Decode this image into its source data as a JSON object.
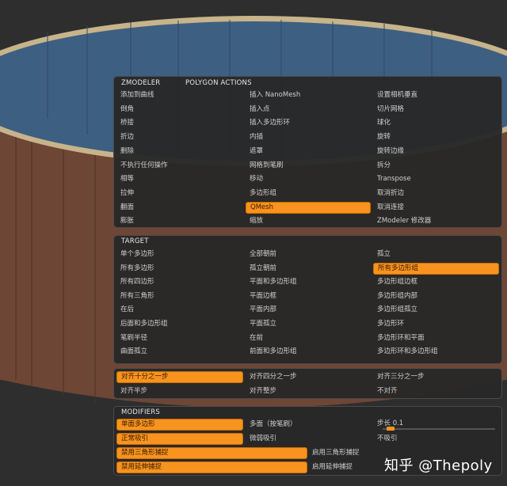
{
  "zmodeler_panel": {
    "header_left": "ZMODELER",
    "header_right": "POLYGON ACTIONS",
    "columns": [
      [
        "添加到曲线",
        "倒角",
        "桥接",
        "折边",
        "删除",
        "不执行任何操作",
        "相等",
        "拉伸",
        "翻面",
        "膨胀"
      ],
      [
        "插入 NanoMesh",
        "插入点",
        "插入多边形环",
        "内插",
        "遮罩",
        "网格到笔刷",
        "移动",
        "多边形组",
        "QMesh",
        "缩放"
      ],
      [
        "设置相机垂直",
        "切片网格",
        "球化",
        "旋转",
        "旋转边缘",
        "拆分",
        "Transpose",
        "取消折边",
        "取消连接",
        "ZModeler 修改器"
      ]
    ],
    "selected": "QMesh"
  },
  "target_panel": {
    "header": "TARGET",
    "columns": [
      [
        "单个多边形",
        "所有多边形",
        "所有四边形",
        "所有三角形",
        "在后",
        "后面和多边形组",
        "笔刷半径",
        "曲面孤立"
      ],
      [
        "全部朝前",
        "孤立朝前",
        "平面和多边形组",
        "平面边框",
        "平面内部",
        "平面孤立",
        "在前",
        "前面和多边形组"
      ],
      [
        "孤立",
        "所有多边形组",
        "多边形组边框",
        "多边形组内部",
        "多边形组孤立",
        "多边形环",
        "多边形环和平面",
        "多边形环和多边形组"
      ]
    ],
    "selected": "所有多边形组"
  },
  "snap_panel": {
    "rows": [
      [
        "对齐十分之一步",
        "对齐四分之一步",
        "对齐三分之一步"
      ],
      [
        "对齐半步",
        "对齐整步",
        "不对齐"
      ]
    ],
    "selected": "对齐十分之一步"
  },
  "modifiers_panel": {
    "header": "MODIFIERS",
    "row1": [
      "单面多边形",
      "多面（按笔刷）"
    ],
    "step_label": "步长 0.1",
    "step_value": 0.1,
    "row2": [
      "正常吸引",
      "微弱吸引",
      "不吸引"
    ],
    "row3": [
      "禁用三角形捕捉",
      "启用三角形捕捉"
    ],
    "row4": [
      "禁用延伸捕捉",
      "启用延伸捕捉"
    ],
    "selected": [
      "单面多边形",
      "正常吸引",
      "禁用三角形捕捉",
      "禁用延伸捕捉"
    ]
  },
  "watermark": "知乎 @Thepoly",
  "colors": {
    "accent": "#f7931e",
    "panel": "#282828",
    "mesh_top": "#3d5f82",
    "mesh_side": "#6e4636"
  }
}
